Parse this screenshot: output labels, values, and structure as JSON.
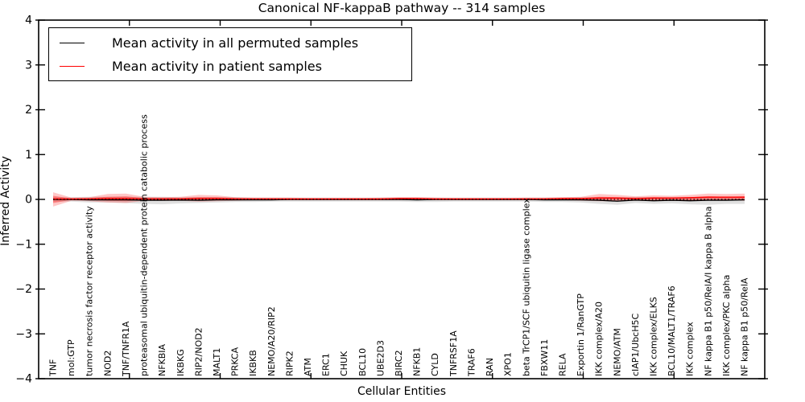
{
  "figure": {
    "title": "Canonical NF-kappaB pathway -- 314 samples",
    "xlabel": "Cellular Entities",
    "ylabel": "Inferred Activity"
  },
  "legend": {
    "items": [
      {
        "label": "Mean activity in all permuted samples",
        "color": "#000000"
      },
      {
        "label": "Mean activity in patient samples",
        "color": "#ff0000"
      }
    ]
  },
  "colors": {
    "permuted_line": "#000000",
    "patient_line": "#ff0000",
    "permuted_band": "rgba(0,0,0,0.12)",
    "patient_band_outer": "rgba(255,0,0,0.22)",
    "patient_band_inner": "rgba(255,0,0,0.33)",
    "axis": "#000000"
  },
  "chart_data": {
    "type": "line",
    "title": "Canonical NF-kappaB pathway -- 314 samples",
    "xlabel": "Cellular Entities",
    "ylabel": "Inferred Activity",
    "ylim": [
      -4,
      4
    ],
    "yticks": [
      -4,
      -3,
      -2,
      -1,
      0,
      1,
      2,
      3,
      4
    ],
    "grid": false,
    "legend_position": "upper left",
    "zero_line": {
      "style": "dotted",
      "color": "#000000",
      "y": 0
    },
    "categories": [
      "TNF",
      "mol:GTP",
      "tumor necrosis factor receptor activity",
      "NOD2",
      "TNF/TNFR1A",
      "proteasomal ubiquitin-dependent protein catabolic process",
      "NFKBIA",
      "IKBKG",
      "RIP2/NOD2",
      "MALT1",
      "PRKCA",
      "IKBKB",
      "NEMO/A20/RIP2",
      "RIPK2",
      "ATM",
      "ERC1",
      "CHUK",
      "BCL10",
      "UBE2D3",
      "BIRC2",
      "NFKB1",
      "CYLD",
      "TNFRSF1A",
      "TRAF6",
      "RAN",
      "XPO1",
      "beta TrCP1/SCF ubiquitin ligase complex",
      "FBXW11",
      "RELA",
      "Exportin 1/RanGTP",
      "IKK complex/A20",
      "NEMO/ATM",
      "cIAP1/UbcH5C",
      "IKK complex/ELKS",
      "BCL10/MALT1/TRAF6",
      "IKK complex",
      "NF kappa B1 p50/RelA/I kappa B alpha",
      "IKK complex/PKC alpha",
      "NF kappa B1 p50/RelA"
    ],
    "series": [
      {
        "name": "Mean activity in all permuted samples",
        "color": "#000000",
        "values": [
          0,
          0,
          -0.01,
          -0.01,
          -0.01,
          -0.02,
          -0.02,
          -0.015,
          -0.02,
          -0.01,
          -0.01,
          -0.01,
          -0.01,
          0,
          0,
          0,
          0,
          0,
          0,
          0,
          -0.01,
          0,
          0,
          0,
          0,
          0,
          0,
          -0.01,
          -0.01,
          -0.01,
          -0.02,
          -0.04,
          -0.015,
          -0.03,
          -0.02,
          -0.03,
          -0.02,
          -0.02,
          -0.01
        ]
      },
      {
        "name": "Mean activity in patient samples",
        "color": "#ff0000",
        "values": [
          0.01,
          0.01,
          0.01,
          0.02,
          0.02,
          0.01,
          0.01,
          0.01,
          0.02,
          0.02,
          0.01,
          0.01,
          0.01,
          0.01,
          0.01,
          0.01,
          0.01,
          0.01,
          0.01,
          0.02,
          0.02,
          0.01,
          0.01,
          0.01,
          0.01,
          0.01,
          0.01,
          0.01,
          0.02,
          0.02,
          0.03,
          0.03,
          0.02,
          0.03,
          0.03,
          0.04,
          0.05,
          0.05,
          0.05
        ]
      }
    ],
    "bands": [
      {
        "name": "permuted-range",
        "fill": "permuted_band",
        "upper": [
          0.05,
          0.05,
          0.06,
          0.06,
          0.06,
          0.06,
          0.06,
          0.05,
          0.05,
          0.05,
          0.05,
          0.04,
          0.04,
          0.04,
          0.04,
          0.04,
          0.04,
          0.04,
          0.04,
          0.04,
          0.04,
          0.04,
          0.04,
          0.04,
          0.04,
          0.04,
          0.04,
          0.04,
          0.04,
          0.05,
          0.05,
          0.05,
          0.05,
          0.05,
          0.05,
          0.05,
          0.05,
          0.05,
          0.06
        ],
        "lower": [
          -0.05,
          -0.05,
          -0.07,
          -0.07,
          -0.08,
          -0.1,
          -0.11,
          -0.09,
          -0.08,
          -0.07,
          -0.06,
          -0.06,
          -0.05,
          -0.05,
          -0.05,
          -0.05,
          -0.05,
          -0.05,
          -0.05,
          -0.05,
          -0.06,
          -0.06,
          -0.05,
          -0.05,
          -0.05,
          -0.05,
          -0.05,
          -0.06,
          -0.06,
          -0.07,
          -0.1,
          -0.12,
          -0.08,
          -0.1,
          -0.09,
          -0.11,
          -0.12,
          -0.1,
          -0.1
        ]
      },
      {
        "name": "patient-range-outer",
        "fill": "patient_band_outer",
        "upper": [
          0.16,
          0.04,
          0.05,
          0.12,
          0.13,
          0.06,
          0.05,
          0.06,
          0.1,
          0.09,
          0.05,
          0.04,
          0.04,
          0.04,
          0.03,
          0.03,
          0.03,
          0.03,
          0.04,
          0.05,
          0.05,
          0.04,
          0.03,
          0.03,
          0.03,
          0.03,
          0.04,
          0.04,
          0.05,
          0.06,
          0.12,
          0.1,
          0.07,
          0.09,
          0.08,
          0.1,
          0.13,
          0.12,
          0.13
        ],
        "lower": [
          -0.16,
          -0.03,
          -0.04,
          -0.07,
          -0.08,
          -0.03,
          -0.03,
          -0.03,
          -0.05,
          -0.04,
          -0.03,
          -0.02,
          -0.02,
          -0.02,
          -0.02,
          -0.02,
          -0.02,
          -0.02,
          -0.02,
          -0.02,
          -0.02,
          -0.02,
          -0.02,
          -0.02,
          -0.02,
          -0.02,
          -0.02,
          -0.02,
          -0.02,
          -0.03,
          -0.04,
          -0.04,
          -0.03,
          -0.03,
          -0.03,
          -0.03,
          -0.02,
          -0.02,
          -0.03
        ]
      },
      {
        "name": "patient-range-inner",
        "fill": "patient_band_inner",
        "upper": [
          0.08,
          0.02,
          0.03,
          0.06,
          0.07,
          0.03,
          0.03,
          0.03,
          0.05,
          0.05,
          0.03,
          0.02,
          0.02,
          0.02,
          0.02,
          0.02,
          0.02,
          0.02,
          0.02,
          0.03,
          0.03,
          0.02,
          0.02,
          0.02,
          0.02,
          0.02,
          0.02,
          0.02,
          0.03,
          0.03,
          0.06,
          0.05,
          0.04,
          0.05,
          0.04,
          0.05,
          0.07,
          0.06,
          0.07
        ],
        "lower": [
          -0.08,
          -0.01,
          -0.02,
          -0.03,
          -0.04,
          -0.01,
          -0.01,
          -0.01,
          -0.02,
          -0.02,
          -0.01,
          -0.01,
          -0.01,
          -0.01,
          -0.01,
          -0.01,
          -0.01,
          -0.01,
          -0.01,
          -0.01,
          -0.01,
          -0.01,
          -0.01,
          -0.01,
          -0.01,
          -0.01,
          -0.01,
          -0.01,
          -0.01,
          -0.01,
          -0.02,
          -0.02,
          -0.01,
          -0.02,
          -0.02,
          -0.02,
          -0.01,
          -0.01,
          -0.01
        ]
      }
    ]
  }
}
